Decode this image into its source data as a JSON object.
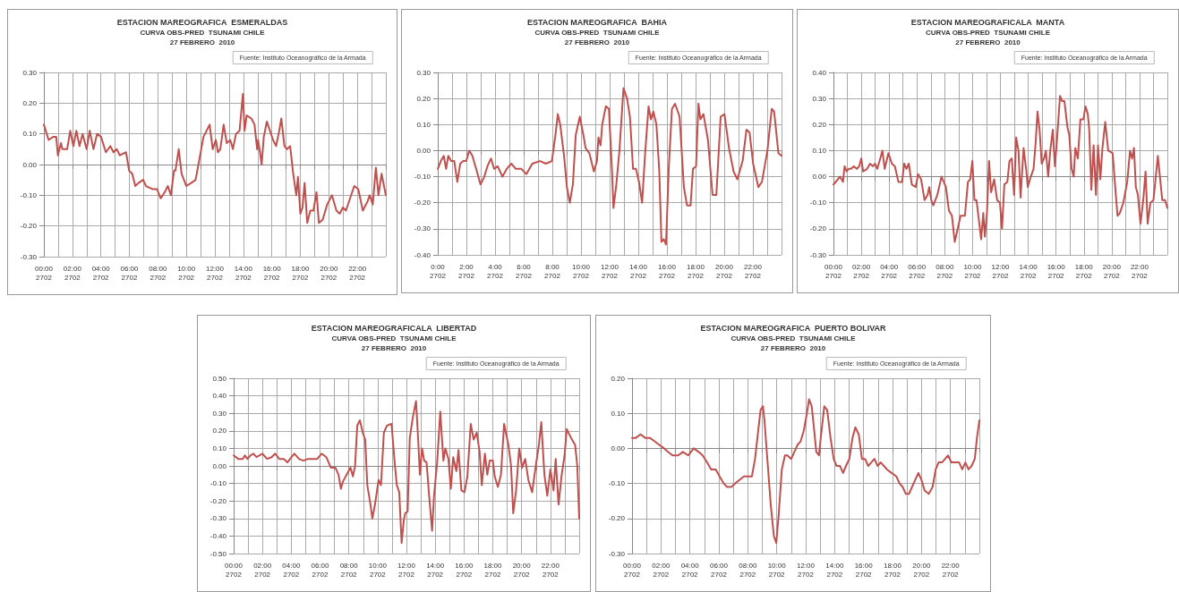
{
  "chart_data": [
    {
      "type": "line",
      "title": "ESTACION MAREOGRAFICA  ESMERALDAS",
      "subtitle": "CURVA OBS-PRED  TSUNAMI CHILE\n27 FEBRERO  2010",
      "annotations": [
        "Fuente: Instituto Oceanográfico de la Armada"
      ],
      "grid": true,
      "color": "#c0504d",
      "xlim": [
        "2010-02-27T00:00",
        "2010-02-28T00:00"
      ],
      "ylim": [
        -0.3,
        0.3
      ],
      "yticks": [
        {
          "value": -0.3,
          "label": "-0.30"
        },
        {
          "value": -0.2,
          "label": "-0.20"
        },
        {
          "value": -0.1,
          "label": "-0.10"
        },
        {
          "value": 0,
          "label": "0.00"
        },
        {
          "value": 0.1,
          "label": "0.10"
        },
        {
          "value": 0.2,
          "label": "0.20"
        },
        {
          "value": 0.3,
          "label": "0.30"
        }
      ],
      "xticks": [
        {
          "value": "2010-02-27T00:00",
          "label": "00:00\n2702"
        },
        {
          "value": "2010-02-27T01:00",
          "label": null
        },
        {
          "value": "2010-02-27T02:00",
          "label": "02:00\n2702"
        },
        {
          "value": "2010-02-27T03:00",
          "label": null
        },
        {
          "value": "2010-02-27T04:00",
          "label": "04:00\n2702"
        },
        {
          "value": "2010-02-27T05:00",
          "label": null
        },
        {
          "value": "2010-02-27T06:00",
          "label": "06:00\n2702"
        },
        {
          "value": "2010-02-27T07:00",
          "label": null
        },
        {
          "value": "2010-02-27T08:00",
          "label": "08:00\n2702"
        },
        {
          "value": "2010-02-27T09:00",
          "label": null
        },
        {
          "value": "2010-02-27T10:00",
          "label": "10:00\n2702"
        },
        {
          "value": "2010-02-27T11:00",
          "label": null
        },
        {
          "value": "2010-02-27T12:00",
          "label": "12:00\n2702"
        },
        {
          "value": "2010-02-27T13:00",
          "label": null
        },
        {
          "value": "2010-02-27T14:00",
          "label": "14:00\n2702"
        },
        {
          "value": "2010-02-27T15:00",
          "label": null
        },
        {
          "value": "2010-02-27T16:00",
          "label": "16:00\n2702"
        },
        {
          "value": "2010-02-27T17:00",
          "label": null
        },
        {
          "value": "2010-02-27T18:00",
          "label": "18:00\n2702"
        },
        {
          "value": "2010-02-27T19:00",
          "label": null
        },
        {
          "value": "2010-02-27T20:00",
          "label": "20:00\n2702"
        },
        {
          "value": "2010-02-27T21:00",
          "label": null
        },
        {
          "value": "2010-02-27T22:00",
          "label": "22:00\n2702"
        },
        {
          "value": "2010-02-27T23:00",
          "label": null
        },
        {
          "value": "2010-02-28T00:00",
          "label": null
        }
      ],
      "x": [
        "2010-02-27T00:00",
        "2010-02-27T00:20",
        "2010-02-27T00:39",
        "2010-02-27T00:52",
        "2010-02-27T00:59",
        "2010-02-27T01:12",
        "2010-02-27T01:18",
        "2010-02-27T01:38",
        "2010-02-27T01:51",
        "2010-02-27T02:04",
        "2010-02-27T02:17",
        "2010-02-27T02:30",
        "2010-02-27T02:43",
        "2010-02-27T03:00",
        "2010-02-27T03:13",
        "2010-02-27T03:29",
        "2010-02-27T03:44",
        "2010-02-27T04:01",
        "2010-02-27T04:21",
        "2010-02-27T04:40",
        "2010-02-27T04:53",
        "2010-02-27T05:07",
        "2010-02-27T05:20",
        "2010-02-27T05:46",
        "2010-02-27T05:59",
        "2010-02-27T06:12",
        "2010-02-27T06:25",
        "2010-02-27T06:38",
        "2010-02-27T06:58",
        "2010-02-27T07:10",
        "2010-02-27T07:37",
        "2010-02-27T07:56",
        "2010-02-27T08:12",
        "2010-02-27T08:29",
        "2010-02-27T08:42",
        "2010-02-27T08:55",
        "2010-02-27T09:08",
        "2010-02-27T09:14",
        "2010-02-27T09:28",
        "2010-02-27T09:40",
        "2010-02-27T10:00",
        "2010-02-27T10:20",
        "2010-02-27T10:39",
        "2010-02-27T11:12",
        "2010-02-27T11:38",
        "2010-02-27T11:51",
        "2010-02-27T12:04",
        "2010-02-27T12:13",
        "2010-02-27T12:23",
        "2010-02-27T12:37",
        "2010-02-27T12:50",
        "2010-02-27T13:05",
        "2010-02-27T13:16",
        "2010-02-27T13:29",
        "2010-02-27T13:44",
        "2010-02-27T13:58",
        "2010-02-27T14:05",
        "2010-02-27T14:14",
        "2010-02-27T14:34",
        "2010-02-27T14:47",
        "2010-02-27T14:58",
        "2010-02-27T15:02",
        "2010-02-27T15:10",
        "2010-02-27T15:17",
        "2010-02-27T15:26",
        "2010-02-27T15:39",
        "2010-02-27T15:52",
        "2010-02-27T16:05",
        "2010-02-27T16:18",
        "2010-02-27T16:31",
        "2010-02-27T16:40",
        "2010-02-27T16:53",
        "2010-02-27T17:04",
        "2010-02-27T17:17",
        "2010-02-27T17:30",
        "2010-02-27T17:43",
        "2010-02-27T17:50",
        "2010-02-27T18:00",
        "2010-02-27T18:09",
        "2010-02-27T18:18",
        "2010-02-27T18:29",
        "2010-02-27T18:42",
        "2010-02-27T18:55",
        "2010-02-27T19:08",
        "2010-02-27T19:18",
        "2010-02-27T19:34",
        "2010-02-27T19:53",
        "2010-02-27T20:13",
        "2010-02-27T20:32",
        "2010-02-27T20:46",
        "2010-02-27T20:59",
        "2010-02-27T21:12",
        "2010-02-27T21:25",
        "2010-02-27T21:47",
        "2010-02-27T22:04",
        "2010-02-27T22:23",
        "2010-02-27T22:43",
        "2010-02-27T22:52",
        "2010-02-27T23:05",
        "2010-02-27T23:18",
        "2010-02-27T23:29",
        "2010-02-27T23:42",
        "2010-02-28T00:00"
      ],
      "values": [
        0.13,
        0.08,
        0.09,
        0.09,
        0.03,
        0.07,
        0.05,
        0.05,
        0.11,
        0.06,
        0.11,
        0.06,
        0.1,
        0.05,
        0.11,
        0.05,
        0.1,
        0.09,
        0.04,
        0.06,
        0.04,
        0.05,
        0.03,
        0.04,
        -0.02,
        -0.03,
        -0.07,
        -0.06,
        -0.05,
        -0.07,
        -0.08,
        -0.08,
        -0.11,
        -0.09,
        -0.07,
        -0.1,
        -0.02,
        -0.02,
        0.05,
        -0.03,
        -0.07,
        -0.06,
        -0.05,
        0.09,
        0.13,
        0.05,
        0.08,
        0.04,
        0.05,
        0.13,
        0.07,
        0.08,
        0.05,
        0.1,
        0.11,
        0.23,
        0.11,
        0.16,
        0.15,
        0.13,
        0.05,
        0.08,
        0.04,
        0.0,
        0.09,
        0.14,
        0.11,
        0.08,
        0.06,
        0.11,
        0.15,
        0.06,
        0.05,
        0.06,
        -0.03,
        -0.1,
        -0.04,
        -0.16,
        -0.14,
        -0.06,
        -0.19,
        -0.15,
        -0.15,
        -0.09,
        -0.19,
        -0.18,
        -0.13,
        -0.1,
        -0.15,
        -0.16,
        -0.14,
        -0.15,
        -0.12,
        -0.07,
        -0.08,
        -0.15,
        -0.12,
        -0.1,
        -0.13,
        -0.01,
        -0.1,
        -0.03,
        -0.1
      ]
    },
    {
      "type": "line",
      "title": "ESTACION MAREOGRAFICA  BAHIA",
      "subtitle": "CURVA OBS-PRED  TSUNAMI CHILE\n27 FEBRERO  2010",
      "annotations": [
        "Fuente: Instituto Oceanográfico de la Armada"
      ],
      "grid": true,
      "color": "#c0504d",
      "xlim": [
        "2010-02-27T00:00",
        "2010-02-28T00:00"
      ],
      "ylim": [
        -0.4,
        0.3
      ],
      "yticks": [
        {
          "value": -0.4,
          "label": "-0.40"
        },
        {
          "value": -0.3,
          "label": "-0.30"
        },
        {
          "value": -0.2,
          "label": "-0.20"
        },
        {
          "value": -0.1,
          "label": "-0.10"
        },
        {
          "value": 0,
          "label": "0.00"
        },
        {
          "value": 0.1,
          "label": "0.10"
        },
        {
          "value": 0.2,
          "label": "0.20"
        },
        {
          "value": 0.3,
          "label": "0.30"
        }
      ],
      "xticks": [
        {
          "value": "2010-02-27T00:00",
          "label": "0:00\n2702"
        },
        {
          "value": "2010-02-27T01:00",
          "label": null
        },
        {
          "value": "2010-02-27T02:00",
          "label": "2:00\n2702"
        },
        {
          "value": "2010-02-27T03:00",
          "label": null
        },
        {
          "value": "2010-02-27T04:00",
          "label": "4:00\n2702"
        },
        {
          "value": "2010-02-27T05:00",
          "label": null
        },
        {
          "value": "2010-02-27T06:00",
          "label": "6:00\n2702"
        },
        {
          "value": "2010-02-27T07:00",
          "label": null
        },
        {
          "value": "2010-02-27T08:00",
          "label": "8:00\n2702"
        },
        {
          "value": "2010-02-27T09:00",
          "label": null
        },
        {
          "value": "2010-02-27T10:00",
          "label": "10:00\n2702"
        },
        {
          "value": "2010-02-27T11:00",
          "label": null
        },
        {
          "value": "2010-02-27T12:00",
          "label": "12:00\n2702"
        },
        {
          "value": "2010-02-27T13:00",
          "label": null
        },
        {
          "value": "2010-02-27T14:00",
          "label": "14:00\n2702"
        },
        {
          "value": "2010-02-27T15:00",
          "label": null
        },
        {
          "value": "2010-02-27T16:00",
          "label": "16:00\n2702"
        },
        {
          "value": "2010-02-27T17:00",
          "label": null
        },
        {
          "value": "2010-02-27T18:00",
          "label": "18:00\n2702"
        },
        {
          "value": "2010-02-27T19:00",
          "label": null
        },
        {
          "value": "2010-02-27T20:00",
          "label": "20:00\n2702"
        },
        {
          "value": "2010-02-27T21:00",
          "label": null
        },
        {
          "value": "2010-02-27T22:00",
          "label": "22:00\n2702"
        },
        {
          "value": "2010-02-27T23:00",
          "label": null
        },
        {
          "value": "2010-02-28T00:00",
          "label": null
        }
      ],
      "x": [
        "2010-02-27T00:00",
        "2010-02-27T00:13",
        "2010-02-27T00:25",
        "2010-02-27T00:35",
        "2010-02-27T00:44",
        "2010-02-27T00:56",
        "2010-02-27T01:09",
        "2010-02-27T01:22",
        "2010-02-27T01:34",
        "2010-02-27T01:47",
        "2010-02-27T01:59",
        "2010-02-27T02:12",
        "2010-02-27T02:25",
        "2010-02-27T02:44",
        "2010-02-27T02:59",
        "2010-02-27T03:15",
        "2010-02-27T03:28",
        "2010-02-27T03:43",
        "2010-02-27T03:56",
        "2010-02-27T04:11",
        "2010-02-27T04:31",
        "2010-02-27T04:49",
        "2010-02-27T05:08",
        "2010-02-27T05:27",
        "2010-02-27T05:50",
        "2010-02-27T06:11",
        "2010-02-27T06:36",
        "2010-02-27T07:08",
        "2010-02-27T07:33",
        "2010-02-27T07:58",
        "2010-02-27T08:13",
        "2010-02-27T08:23",
        "2010-02-27T08:33",
        "2010-02-27T08:49",
        "2010-02-27T09:01",
        "2010-02-27T09:13",
        "2010-02-27T09:26",
        "2010-02-27T09:38",
        "2010-02-27T09:55",
        "2010-02-27T10:10",
        "2010-02-27T10:19",
        "2010-02-27T10:35",
        "2010-02-27T10:54",
        "2010-02-27T11:07",
        "2010-02-27T11:13",
        "2010-02-27T11:22",
        "2010-02-27T11:29",
        "2010-02-27T11:44",
        "2010-02-27T11:57",
        "2010-02-27T12:10",
        "2010-02-27T12:16",
        "2010-02-27T12:28",
        "2010-02-27T12:41",
        "2010-02-27T12:58",
        "2010-02-27T13:13",
        "2010-02-27T13:25",
        "2010-02-27T13:38",
        "2010-02-27T13:50",
        "2010-02-27T14:03",
        "2010-02-27T14:16",
        "2010-02-27T14:28",
        "2010-02-27T14:43",
        "2010-02-27T14:53",
        "2010-02-27T15:03",
        "2010-02-27T15:16",
        "2010-02-27T15:28",
        "2010-02-27T15:37",
        "2010-02-27T15:47",
        "2010-02-27T15:56",
        "2010-02-27T16:08",
        "2010-02-27T16:21",
        "2010-02-27T16:34",
        "2010-02-27T16:53",
        "2010-02-27T17:11",
        "2010-02-27T17:24",
        "2010-02-27T17:39",
        "2010-02-27T17:49",
        "2010-02-27T18:02",
        "2010-02-27T18:12",
        "2010-02-27T18:20",
        "2010-02-27T18:33",
        "2010-02-27T18:52",
        "2010-02-27T19:11",
        "2010-02-27T19:27",
        "2010-02-27T19:45",
        "2010-02-27T20:01",
        "2010-02-27T20:20",
        "2010-02-27T20:39",
        "2010-02-27T20:55",
        "2010-02-27T21:17",
        "2010-02-27T21:33",
        "2010-02-27T21:46",
        "2010-02-27T22:01",
        "2010-02-27T22:23",
        "2010-02-27T22:38",
        "2010-02-27T23:01",
        "2010-02-27T23:19",
        "2010-02-27T23:29",
        "2010-02-27T23:47",
        "2010-02-28T00:00"
      ],
      "values": [
        -0.07,
        -0.04,
        -0.02,
        -0.07,
        -0.02,
        -0.04,
        -0.04,
        -0.12,
        -0.05,
        -0.04,
        -0.04,
        0.0,
        -0.02,
        -0.08,
        -0.13,
        -0.1,
        -0.06,
        -0.03,
        -0.07,
        -0.06,
        -0.1,
        -0.07,
        -0.05,
        -0.07,
        -0.07,
        -0.09,
        -0.05,
        -0.04,
        -0.05,
        -0.04,
        0.06,
        0.14,
        0.1,
        -0.02,
        -0.14,
        -0.2,
        -0.13,
        0.06,
        0.13,
        0.06,
        0.01,
        -0.01,
        -0.08,
        -0.04,
        0.05,
        0.02,
        0.1,
        0.17,
        0.16,
        -0.08,
        -0.22,
        -0.13,
        0.0,
        0.24,
        0.2,
        0.13,
        -0.07,
        -0.07,
        -0.12,
        -0.2,
        -0.02,
        0.17,
        0.12,
        0.15,
        0.1,
        -0.08,
        -0.35,
        -0.34,
        -0.36,
        -0.06,
        0.16,
        0.18,
        0.13,
        -0.14,
        -0.21,
        -0.21,
        -0.07,
        -0.06,
        0.18,
        0.12,
        0.14,
        0.04,
        -0.17,
        -0.17,
        0.13,
        0.14,
        0.01,
        -0.08,
        -0.11,
        -0.04,
        0.08,
        0.07,
        -0.05,
        -0.14,
        -0.12,
        0.0,
        0.16,
        0.15,
        -0.01,
        -0.02
      ]
    },
    {
      "type": "line",
      "title": "ESTACION MAREOGRAFICALA  MANTA",
      "subtitle": "CURVA OBS-PRED  TSUNAMI CHILE\n27 FEBRERO  2010",
      "annotations": [
        "Fuente: Instituto Oceanográfico de la Armada"
      ],
      "grid": true,
      "color": "#c0504d",
      "xlim": [
        "2010-02-27T00:00",
        "2010-02-28T00:00"
      ],
      "ylim": [
        -0.3,
        0.4
      ],
      "yticks": [
        {
          "value": -0.3,
          "label": "-0.30"
        },
        {
          "value": -0.2,
          "label": "-0.20"
        },
        {
          "value": -0.1,
          "label": "-0.10"
        },
        {
          "value": 0,
          "label": "0.00"
        },
        {
          "value": 0.1,
          "label": "0.10"
        },
        {
          "value": 0.2,
          "label": "0.20"
        },
        {
          "value": 0.3,
          "label": "0.30"
        },
        {
          "value": 0.4,
          "label": "0.40"
        }
      ],
      "xticks": [
        {
          "value": "2010-02-27T00:00",
          "label": "00:00\n2702"
        },
        {
          "value": "2010-02-27T01:00",
          "label": null
        },
        {
          "value": "2010-02-27T02:00",
          "label": "02:00\n2702"
        },
        {
          "value": "2010-02-27T03:00",
          "label": null
        },
        {
          "value": "2010-02-27T04:00",
          "label": "04:00\n2702"
        },
        {
          "value": "2010-02-27T05:00",
          "label": null
        },
        {
          "value": "2010-02-27T06:00",
          "label": "06:00\n2702"
        },
        {
          "value": "2010-02-27T07:00",
          "label": null
        },
        {
          "value": "2010-02-27T08:00",
          "label": "08:00\n2702"
        },
        {
          "value": "2010-02-27T09:00",
          "label": null
        },
        {
          "value": "2010-02-27T10:00",
          "label": "10:00\n2702"
        },
        {
          "value": "2010-02-27T11:00",
          "label": null
        },
        {
          "value": "2010-02-27T12:00",
          "label": "12:00\n2702"
        },
        {
          "value": "2010-02-27T13:00",
          "label": null
        },
        {
          "value": "2010-02-27T14:00",
          "label": "14:00\n2702"
        },
        {
          "value": "2010-02-27T15:00",
          "label": null
        },
        {
          "value": "2010-02-27T16:00",
          "label": "16:00\n2702"
        },
        {
          "value": "2010-02-27T17:00",
          "label": null
        },
        {
          "value": "2010-02-27T18:00",
          "label": "18:00\n2702"
        },
        {
          "value": "2010-02-27T19:00",
          "label": null
        },
        {
          "value": "2010-02-27T20:00",
          "label": "20:00\n2702"
        },
        {
          "value": "2010-02-27T21:00",
          "label": null
        },
        {
          "value": "2010-02-27T22:00",
          "label": "22:00\n2702"
        },
        {
          "value": "2010-02-27T23:00",
          "label": null
        },
        {
          "value": "2010-02-28T00:00",
          "label": null
        }
      ],
      "x": [
        "2010-02-27T00:00",
        "2010-02-27T00:19",
        "2010-02-27T00:28",
        "2010-02-27T00:35",
        "2010-02-27T00:41",
        "2010-02-27T00:48",
        "2010-02-27T00:57",
        "2010-02-27T01:05",
        "2010-02-27T01:16",
        "2010-02-27T01:28",
        "2010-02-27T01:41",
        "2010-02-27T01:51",
        "2010-02-27T02:00",
        "2010-02-27T02:08",
        "2010-02-27T02:25",
        "2010-02-27T02:38",
        "2010-02-27T02:50",
        "2010-02-27T02:59",
        "2010-02-27T03:09",
        "2010-02-27T03:22",
        "2010-02-27T03:31",
        "2010-02-27T03:41",
        "2010-02-27T03:57",
        "2010-02-27T04:12",
        "2010-02-27T04:25",
        "2010-02-27T04:40",
        "2010-02-27T04:56",
        "2010-02-27T05:05",
        "2010-02-27T05:15",
        "2010-02-27T05:25",
        "2010-02-27T05:38",
        "2010-02-27T05:55",
        "2010-02-27T06:05",
        "2010-02-27T06:18",
        "2010-02-27T06:33",
        "2010-02-27T06:46",
        "2010-02-27T06:53",
        "2010-02-27T07:02",
        "2010-02-27T07:11",
        "2010-02-27T07:28",
        "2010-02-27T07:46",
        "2010-02-27T08:05",
        "2010-02-27T08:18",
        "2010-02-27T08:31",
        "2010-02-27T08:43",
        "2010-02-27T08:56",
        "2010-02-27T09:08",
        "2010-02-27T09:27",
        "2010-02-27T09:40",
        "2010-02-27T09:50",
        "2010-02-27T09:59",
        "2010-02-27T10:08",
        "2010-02-27T10:17",
        "2010-02-27T10:37",
        "2010-02-27T10:46",
        "2010-02-27T10:53",
        "2010-02-27T11:02",
        "2010-02-27T11:11",
        "2010-02-27T11:20",
        "2010-02-27T11:33",
        "2010-02-27T11:46",
        "2010-02-27T11:58",
        "2010-02-27T12:07",
        "2010-02-27T12:17",
        "2010-02-27T12:30",
        "2010-02-27T12:39",
        "2010-02-27T12:49",
        "2010-02-27T12:59",
        "2010-02-27T13:08",
        "2010-02-27T13:18",
        "2010-02-27T13:27",
        "2010-02-27T13:40",
        "2010-02-27T13:52",
        "2010-02-27T13:58",
        "2010-02-27T14:11",
        "2010-02-27T14:23",
        "2010-02-27T14:32",
        "2010-02-27T14:40",
        "2010-02-27T14:49",
        "2010-02-27T14:58",
        "2010-02-27T15:08",
        "2010-02-27T15:16",
        "2010-02-27T15:26",
        "2010-02-27T15:35",
        "2010-02-27T15:46",
        "2010-02-27T15:55",
        "2010-02-27T16:04",
        "2010-02-27T16:17",
        "2010-02-27T16:26",
        "2010-02-27T16:36",
        "2010-02-27T16:49",
        "2010-02-27T16:57",
        "2010-02-27T17:07",
        "2010-02-27T17:16",
        "2010-02-27T17:23",
        "2010-02-27T17:34",
        "2010-02-27T17:45",
        "2010-02-27T17:58",
        "2010-02-27T18:07",
        "2010-02-27T18:17",
        "2010-02-27T18:23",
        "2010-02-27T18:32",
        "2010-02-27T18:42",
        "2010-02-27T18:52",
        "2010-02-27T19:01",
        "2010-02-27T19:11",
        "2010-02-27T19:20",
        "2010-02-27T19:32",
        "2010-02-27T19:45",
        "2010-02-27T20:04",
        "2010-02-27T20:16",
        "2010-02-27T20:25",
        "2010-02-27T20:35",
        "2010-02-27T20:50",
        "2010-02-27T21:07",
        "2010-02-27T21:19",
        "2010-02-27T21:28",
        "2010-02-27T21:36",
        "2010-02-27T21:44",
        "2010-02-27T21:53",
        "2010-02-27T22:04",
        "2010-02-27T22:16",
        "2010-02-27T22:26",
        "2010-02-27T22:35",
        "2010-02-27T22:47",
        "2010-02-27T23:00",
        "2010-02-27T23:19",
        "2010-02-27T23:38",
        "2010-02-27T23:50",
        "2010-02-28T00:00"
      ],
      "values": [
        -0.03,
        -0.01,
        0.0,
        -0.01,
        -0.02,
        0.04,
        0.02,
        0.03,
        0.03,
        0.04,
        0.03,
        0.04,
        0.07,
        0.02,
        0.03,
        0.05,
        0.04,
        0.05,
        0.03,
        0.07,
        0.1,
        0.03,
        0.09,
        0.05,
        0.04,
        -0.02,
        -0.02,
        0.05,
        0.03,
        0.05,
        -0.03,
        -0.04,
        0.01,
        -0.01,
        -0.09,
        -0.07,
        -0.04,
        -0.09,
        -0.11,
        -0.07,
        0.0,
        -0.04,
        -0.13,
        -0.15,
        -0.25,
        -0.2,
        -0.15,
        -0.15,
        -0.02,
        -0.01,
        0.06,
        -0.09,
        -0.09,
        -0.24,
        -0.14,
        -0.23,
        -0.14,
        0.06,
        -0.06,
        -0.01,
        -0.09,
        -0.1,
        -0.2,
        -0.03,
        -0.02,
        0.06,
        0.07,
        -0.07,
        0.15,
        0.1,
        -0.08,
        0.11,
        0.02,
        -0.04,
        0.0,
        0.03,
        0.13,
        0.25,
        0.18,
        0.05,
        0.07,
        0.1,
        0.0,
        0.1,
        0.18,
        0.04,
        0.14,
        0.31,
        0.29,
        0.29,
        0.19,
        0.16,
        0.03,
        0.0,
        0.11,
        0.07,
        0.22,
        0.22,
        0.27,
        0.24,
        0.18,
        -0.05,
        0.12,
        -0.07,
        0.12,
        -0.01,
        0.11,
        0.21,
        0.1,
        0.09,
        -0.05,
        -0.15,
        -0.14,
        -0.1,
        -0.02,
        0.1,
        0.07,
        0.11,
        -0.04,
        -0.07,
        -0.18,
        -0.09,
        0.02,
        -0.18,
        -0.1,
        -0.09,
        0.08,
        -0.09,
        -0.09,
        -0.12
      ]
    },
    {
      "type": "line",
      "title": "ESTACION MAREOGRAFICALA  LIBERTAD",
      "subtitle": "CURVA OBS-PRED  TSUNAMI CHILE\n27 FEBRERO  2010",
      "annotations": [
        "Fuente: Instituto Oceanográfico de la Armada"
      ],
      "grid": true,
      "color": "#c0504d",
      "xlim": [
        "2010-02-27T00:00",
        "2010-02-28T00:00"
      ],
      "ylim": [
        -0.5,
        0.5
      ],
      "yticks": [
        {
          "value": -0.5,
          "label": "-0.50"
        },
        {
          "value": -0.4,
          "label": "-0.40"
        },
        {
          "value": -0.3,
          "label": "-0.30"
        },
        {
          "value": -0.2,
          "label": "-0.20"
        },
        {
          "value": -0.1,
          "label": "-0.10"
        },
        {
          "value": 0,
          "label": "0.00"
        },
        {
          "value": 0.1,
          "label": "0.10"
        },
        {
          "value": 0.2,
          "label": "0.20"
        },
        {
          "value": 0.3,
          "label": "0.30"
        },
        {
          "value": 0.4,
          "label": "0.40"
        },
        {
          "value": 0.5,
          "label": "0.50"
        }
      ],
      "xticks": [
        {
          "value": "2010-02-27T00:00",
          "label": "00:00\n2702"
        },
        {
          "value": "2010-02-27T01:00",
          "label": null
        },
        {
          "value": "2010-02-27T02:00",
          "label": "02:00\n2702"
        },
        {
          "value": "2010-02-27T03:00",
          "label": null
        },
        {
          "value": "2010-02-27T04:00",
          "label": "04:00\n2702"
        },
        {
          "value": "2010-02-27T05:00",
          "label": null
        },
        {
          "value": "2010-02-27T06:00",
          "label": "06:00\n2702"
        },
        {
          "value": "2010-02-27T07:00",
          "label": null
        },
        {
          "value": "2010-02-27T08:00",
          "label": "08:00\n2702"
        },
        {
          "value": "2010-02-27T09:00",
          "label": null
        },
        {
          "value": "2010-02-27T10:00",
          "label": "10:00\n2702"
        },
        {
          "value": "2010-02-27T11:00",
          "label": null
        },
        {
          "value": "2010-02-27T12:00",
          "label": "12:00\n2702"
        },
        {
          "value": "2010-02-27T13:00",
          "label": null
        },
        {
          "value": "2010-02-27T14:00",
          "label": "14:00\n2702"
        },
        {
          "value": "2010-02-27T15:00",
          "label": null
        },
        {
          "value": "2010-02-27T16:00",
          "label": "16:00\n2702"
        },
        {
          "value": "2010-02-27T17:00",
          "label": null
        },
        {
          "value": "2010-02-27T18:00",
          "label": "18:00\n2702"
        },
        {
          "value": "2010-02-27T19:00",
          "label": null
        },
        {
          "value": "2010-02-27T20:00",
          "label": "20:00\n2702"
        },
        {
          "value": "2010-02-27T21:00",
          "label": null
        },
        {
          "value": "2010-02-27T22:00",
          "label": "22:00\n2702"
        },
        {
          "value": "2010-02-27T23:00",
          "label": null
        },
        {
          "value": "2010-02-28T00:00",
          "label": null
        }
      ],
      "x": [
        "2010-02-27T00:00",
        "2010-02-27T00:19",
        "2010-02-27T00:38",
        "2010-02-27T00:47",
        "2010-02-27T00:57",
        "2010-02-27T01:10",
        "2010-02-27T01:22",
        "2010-02-27T01:35",
        "2010-02-27T02:00",
        "2010-02-27T02:19",
        "2010-02-27T02:38",
        "2010-02-27T02:53",
        "2010-02-27T03:10",
        "2010-02-27T03:29",
        "2010-02-27T03:44",
        "2010-02-27T04:01",
        "2010-02-27T04:13",
        "2010-02-27T04:32",
        "2010-02-27T04:51",
        "2010-02-27T05:10",
        "2010-02-27T05:29",
        "2010-02-27T05:48",
        "2010-02-27T06:07",
        "2010-02-27T06:26",
        "2010-02-27T06:45",
        "2010-02-27T07:04",
        "2010-02-27T07:17",
        "2010-02-27T07:27",
        "2010-02-27T07:35",
        "2010-02-27T07:55",
        "2010-02-27T08:07",
        "2010-02-27T08:17",
        "2010-02-27T08:26",
        "2010-02-27T08:35",
        "2010-02-27T08:46",
        "2010-02-27T08:58",
        "2010-02-27T09:08",
        "2010-02-27T09:17",
        "2010-02-27T09:29",
        "2010-02-27T09:38",
        "2010-02-27T09:49",
        "2010-02-27T10:04",
        "2010-02-27T10:14",
        "2010-02-27T10:26",
        "2010-02-27T10:39",
        "2010-02-27T10:58",
        "2010-02-27T11:11",
        "2010-02-27T11:20",
        "2010-02-27T11:30",
        "2010-02-27T11:40",
        "2010-02-27T11:49",
        "2010-02-27T11:55",
        "2010-02-27T12:05",
        "2010-02-27T12:14",
        "2010-02-27T12:27",
        "2010-02-27T12:40",
        "2010-02-27T12:49",
        "2010-02-27T12:56",
        "2010-02-27T13:05",
        "2010-02-27T13:14",
        "2010-02-27T13:24",
        "2010-02-27T13:34",
        "2010-02-27T13:47",
        "2010-02-27T13:55",
        "2010-02-27T14:08",
        "2010-02-27T14:21",
        "2010-02-27T14:34",
        "2010-02-27T14:42",
        "2010-02-27T14:55",
        "2010-02-27T15:05",
        "2010-02-27T15:15",
        "2010-02-27T15:28",
        "2010-02-27T15:37",
        "2010-02-27T15:49",
        "2010-02-27T16:02",
        "2010-02-27T16:14",
        "2010-02-27T16:28",
        "2010-02-27T16:40",
        "2010-02-27T16:53",
        "2010-02-27T17:05",
        "2010-02-27T17:14",
        "2010-02-27T17:27",
        "2010-02-27T17:37",
        "2010-02-27T17:47",
        "2010-02-27T18:00",
        "2010-02-27T18:08",
        "2010-02-27T18:21",
        "2010-02-27T18:34",
        "2010-02-27T18:47",
        "2010-02-27T19:05",
        "2010-02-27T19:16",
        "2010-02-27T19:25",
        "2010-02-27T19:37",
        "2010-02-27T19:50",
        "2010-02-27T20:02",
        "2010-02-27T20:15",
        "2010-02-27T20:28",
        "2010-02-27T20:44",
        "2010-02-27T20:59",
        "2010-02-27T21:12",
        "2010-02-27T21:22",
        "2010-02-27T21:35",
        "2010-02-27T21:47",
        "2010-02-27T22:00",
        "2010-02-27T22:13",
        "2010-02-27T22:22",
        "2010-02-27T22:34",
        "2010-02-27T22:47",
        "2010-02-27T22:59",
        "2010-02-27T23:08",
        "2010-02-27T23:26",
        "2010-02-27T23:43",
        "2010-02-27T23:52",
        "2010-02-28T00:00"
      ],
      "values": [
        0.06,
        0.04,
        0.04,
        0.06,
        0.04,
        0.06,
        0.07,
        0.05,
        0.07,
        0.04,
        0.05,
        0.07,
        0.04,
        0.04,
        0.02,
        0.05,
        0.07,
        0.04,
        0.03,
        0.04,
        0.04,
        0.04,
        0.07,
        0.05,
        -0.01,
        -0.01,
        -0.05,
        -0.13,
        -0.09,
        -0.04,
        -0.01,
        -0.06,
        0.0,
        0.23,
        0.26,
        0.19,
        0.15,
        -0.11,
        -0.21,
        -0.3,
        -0.22,
        -0.08,
        -0.11,
        0.19,
        0.23,
        0.24,
        0.02,
        -0.11,
        -0.15,
        -0.44,
        -0.31,
        -0.27,
        -0.26,
        0.16,
        0.28,
        0.37,
        0.15,
        -0.05,
        0.1,
        0.03,
        0.02,
        -0.16,
        -0.37,
        -0.17,
        0.02,
        0.31,
        0.03,
        0.1,
        0.04,
        -0.13,
        0.05,
        -0.03,
        0.09,
        -0.14,
        -0.15,
        -0.06,
        0.24,
        0.15,
        0.19,
        0.08,
        -0.11,
        0.07,
        -0.05,
        0.03,
        0.03,
        -0.06,
        -0.12,
        -0.05,
        0.24,
        0.12,
        0.0,
        -0.27,
        -0.14,
        0.1,
        -0.01,
        0.04,
        -0.08,
        -0.15,
        0.0,
        0.12,
        0.25,
        -0.05,
        -0.17,
        -0.02,
        -0.14,
        0.04,
        -0.22,
        -0.05,
        0.06,
        0.21,
        0.16,
        0.12,
        0.0,
        -0.3
      ]
    },
    {
      "type": "line",
      "title": "ESTACION MAREOGRAFICA  PUERTO BOLIVAR",
      "subtitle": "CURVA OBS-PRED  TSUNAMI CHILE\n27 FEBRERO  2010",
      "annotations": [
        "Fuente: Instituto Oceanográfico de la Armada"
      ],
      "grid": true,
      "color": "#c0504d",
      "xlim": [
        "2010-02-27T00:00",
        "2010-02-28T00:00"
      ],
      "ylim": [
        -0.3,
        0.2
      ],
      "yticks": [
        {
          "value": -0.3,
          "label": "-0.30"
        },
        {
          "value": -0.2,
          "label": "-0.20"
        },
        {
          "value": -0.1,
          "label": "-0.10"
        },
        {
          "value": 0,
          "label": "0.00"
        },
        {
          "value": 0.1,
          "label": "0.10"
        },
        {
          "value": 0.2,
          "label": "0.20"
        }
      ],
      "xticks": [
        {
          "value": "2010-02-27T00:00",
          "label": "00:00\n2702"
        },
        {
          "value": "2010-02-27T01:00",
          "label": null
        },
        {
          "value": "2010-02-27T02:00",
          "label": "02:00\n2702"
        },
        {
          "value": "2010-02-27T03:00",
          "label": null
        },
        {
          "value": "2010-02-27T04:00",
          "label": "04:00\n2702"
        },
        {
          "value": "2010-02-27T05:00",
          "label": null
        },
        {
          "value": "2010-02-27T06:00",
          "label": "06:00\n2702"
        },
        {
          "value": "2010-02-27T07:00",
          "label": null
        },
        {
          "value": "2010-02-27T08:00",
          "label": "08:00\n2702"
        },
        {
          "value": "2010-02-27T09:00",
          "label": null
        },
        {
          "value": "2010-02-27T10:00",
          "label": "10:00\n2702"
        },
        {
          "value": "2010-02-27T11:00",
          "label": null
        },
        {
          "value": "2010-02-27T12:00",
          "label": "12:00\n2702"
        },
        {
          "value": "2010-02-27T13:00",
          "label": null
        },
        {
          "value": "2010-02-27T14:00",
          "label": "14:00\n2702"
        },
        {
          "value": "2010-02-27T15:00",
          "label": null
        },
        {
          "value": "2010-02-27T16:00",
          "label": "16:00\n2702"
        },
        {
          "value": "2010-02-27T17:00",
          "label": null
        },
        {
          "value": "2010-02-27T18:00",
          "label": "18:00\n2702"
        },
        {
          "value": "2010-02-27T19:00",
          "label": null
        },
        {
          "value": "2010-02-27T20:00",
          "label": "20:00\n2702"
        },
        {
          "value": "2010-02-27T21:00",
          "label": null
        },
        {
          "value": "2010-02-27T22:00",
          "label": "22:00\n2702"
        },
        {
          "value": "2010-02-27T23:00",
          "label": null
        },
        {
          "value": "2010-02-28T00:00",
          "label": null
        }
      ],
      "x": [
        "2010-02-27T00:00",
        "2010-02-27T00:16",
        "2010-02-27T00:35",
        "2010-02-27T00:55",
        "2010-02-27T01:14",
        "2010-02-27T01:34",
        "2010-02-27T01:53",
        "2010-02-27T02:13",
        "2010-02-27T02:29",
        "2010-02-27T02:48",
        "2010-02-27T03:11",
        "2010-02-27T03:31",
        "2010-02-27T03:53",
        "2010-02-27T04:16",
        "2010-02-27T04:36",
        "2010-02-27T04:53",
        "2010-02-27T05:11",
        "2010-02-27T05:28",
        "2010-02-27T05:47",
        "2010-02-27T06:03",
        "2010-02-27T06:20",
        "2010-02-27T06:34",
        "2010-02-27T06:52",
        "2010-02-27T07:08",
        "2010-02-27T07:25",
        "2010-02-27T07:44",
        "2010-02-27T08:04",
        "2010-02-27T08:17",
        "2010-02-27T08:30",
        "2010-02-27T08:43",
        "2010-02-27T08:53",
        "2010-02-27T09:03",
        "2010-02-27T09:09",
        "2010-02-27T09:22",
        "2010-02-27T09:35",
        "2010-02-27T09:48",
        "2010-02-27T09:58",
        "2010-02-27T10:08",
        "2010-02-27T10:21",
        "2010-02-27T10:34",
        "2010-02-27T10:44",
        "2010-02-27T11:00",
        "2010-02-27T11:13",
        "2010-02-27T11:26",
        "2010-02-27T11:39",
        "2010-02-27T11:52",
        "2010-02-27T12:05",
        "2010-02-27T12:14",
        "2010-02-27T12:25",
        "2010-02-27T12:34",
        "2010-02-27T12:44",
        "2010-02-27T12:55",
        "2010-02-27T13:04",
        "2010-02-27T13:17",
        "2010-02-27T13:29",
        "2010-02-27T13:43",
        "2010-02-27T13:56",
        "2010-02-27T14:08",
        "2010-02-27T14:22",
        "2010-02-27T14:35",
        "2010-02-27T14:47",
        "2010-02-27T15:01",
        "2010-02-27T15:14",
        "2010-02-27T15:26",
        "2010-02-27T15:40",
        "2010-02-27T15:53",
        "2010-02-27T16:06",
        "2010-02-27T16:19",
        "2010-02-27T16:32",
        "2010-02-27T16:45",
        "2010-02-27T16:58",
        "2010-02-27T17:11",
        "2010-02-27T17:24",
        "2010-02-27T17:37",
        "2010-02-27T17:56",
        "2010-02-27T18:16",
        "2010-02-27T18:29",
        "2010-02-27T18:42",
        "2010-02-27T18:55",
        "2010-02-27T19:08",
        "2010-02-27T19:21",
        "2010-02-27T19:34",
        "2010-02-27T19:47",
        "2010-02-27T20:00",
        "2010-02-27T20:13",
        "2010-02-27T20:30",
        "2010-02-27T20:46",
        "2010-02-27T20:59",
        "2010-02-27T21:11",
        "2010-02-27T21:25",
        "2010-02-27T21:38",
        "2010-02-27T21:50",
        "2010-02-27T22:04",
        "2010-02-27T22:17",
        "2010-02-27T22:36",
        "2010-02-27T22:49",
        "2010-02-27T23:02",
        "2010-02-27T23:15",
        "2010-02-27T23:28",
        "2010-02-27T23:41",
        "2010-02-27T23:50",
        "2010-02-28T00:00"
      ],
      "values": [
        0.03,
        0.03,
        0.04,
        0.03,
        0.03,
        0.02,
        0.01,
        0.0,
        -0.01,
        -0.02,
        -0.02,
        -0.01,
        -0.02,
        0.0,
        -0.01,
        -0.02,
        -0.04,
        -0.06,
        -0.06,
        -0.08,
        -0.1,
        -0.11,
        -0.11,
        -0.1,
        -0.09,
        -0.08,
        -0.08,
        -0.08,
        -0.03,
        0.05,
        0.11,
        0.12,
        0.08,
        -0.04,
        -0.16,
        -0.25,
        -0.27,
        -0.19,
        -0.06,
        -0.02,
        -0.02,
        -0.03,
        -0.01,
        0.01,
        0.02,
        0.05,
        0.1,
        0.14,
        0.12,
        0.06,
        -0.01,
        -0.02,
        0.04,
        0.12,
        0.11,
        0.03,
        -0.03,
        -0.05,
        -0.05,
        -0.07,
        -0.05,
        -0.03,
        0.03,
        0.06,
        0.04,
        -0.03,
        -0.03,
        -0.05,
        -0.04,
        -0.03,
        -0.05,
        -0.04,
        -0.05,
        -0.06,
        -0.07,
        -0.08,
        -0.1,
        -0.11,
        -0.13,
        -0.13,
        -0.11,
        -0.09,
        -0.07,
        -0.09,
        -0.12,
        -0.13,
        -0.11,
        -0.06,
        -0.04,
        -0.04,
        -0.03,
        -0.02,
        -0.04,
        -0.04,
        -0.04,
        -0.06,
        -0.04,
        -0.06,
        -0.05,
        -0.03,
        0.03,
        0.08
      ]
    }
  ]
}
